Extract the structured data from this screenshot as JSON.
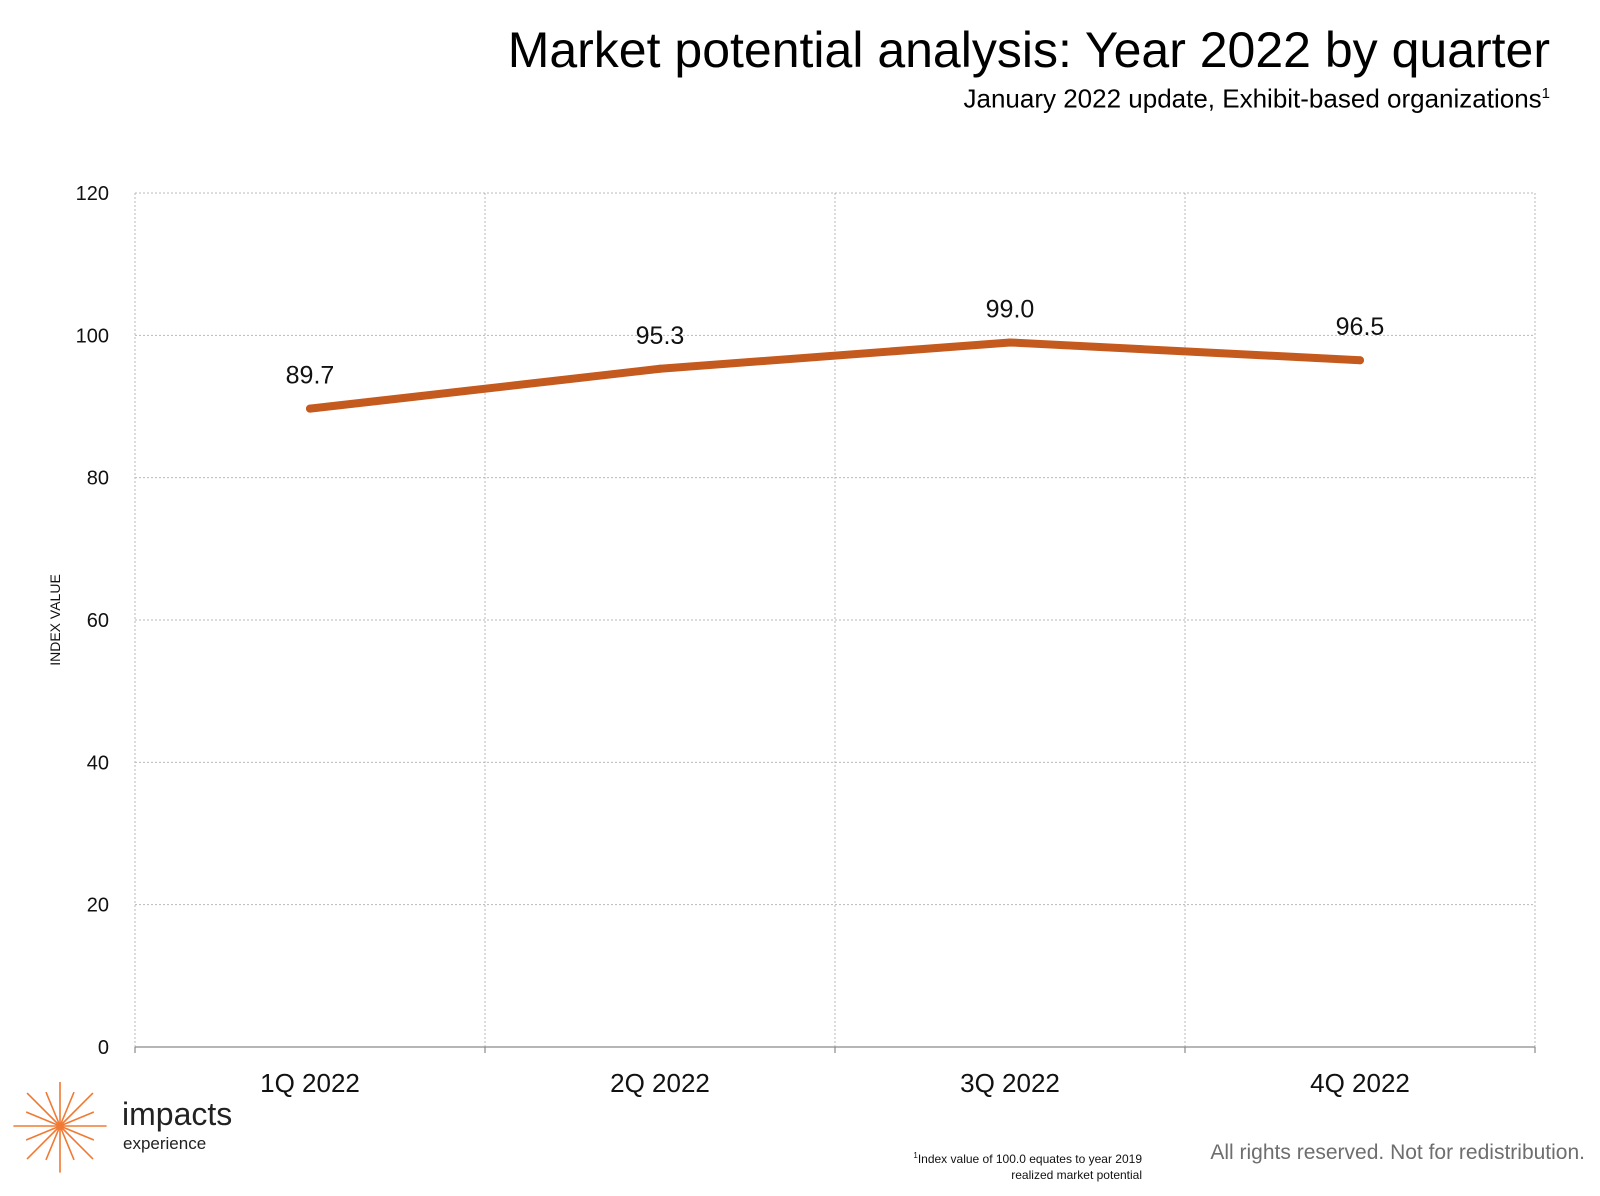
{
  "header": {
    "title": "Market potential analysis: Year 2022 by quarter",
    "subtitle": "January 2022 update, Exhibit-based organizations",
    "subtitle_sup": "1"
  },
  "chart_data": {
    "type": "line",
    "title": "Market potential analysis: Year 2022 by quarter",
    "subtitle": "January 2022 update, Exhibit-based organizations",
    "xlabel": "",
    "ylabel": "INDEX VALUE",
    "categories": [
      "1Q 2022",
      "2Q 2022",
      "3Q 2022",
      "4Q 2022"
    ],
    "series": [
      {
        "values": [
          89.7,
          95.3,
          99.0,
          96.5
        ],
        "data_labels": [
          "89.7",
          "95.3",
          "99.0",
          "96.5"
        ],
        "color": "#c55a1e"
      }
    ],
    "ylim": [
      0,
      120
    ],
    "yticks": [
      "0",
      "20",
      "40",
      "60",
      "80",
      "100",
      "120"
    ],
    "grid": true,
    "grid_style": "dotted",
    "legend": "none"
  },
  "logo": {
    "word": "impacts",
    "sub": "experience",
    "accent_color": "#f07a33"
  },
  "footer": {
    "footnote_sup": "1",
    "footnote": "Index value of 100.0 equates to year 2019 realized market potential",
    "rights": "All rights reserved. Not for redistribution."
  }
}
